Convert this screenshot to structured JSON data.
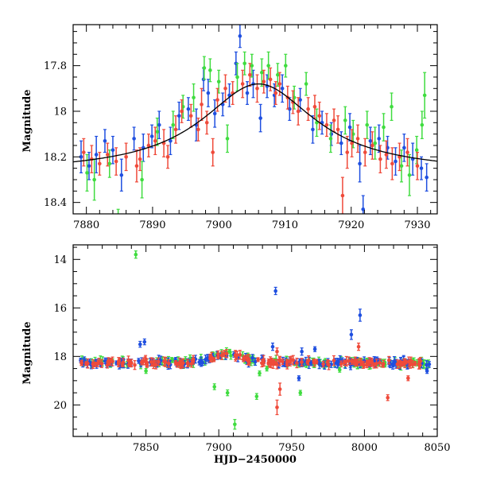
{
  "chart_data": [
    {
      "type": "scatter",
      "id": "top",
      "title": "",
      "xlabel": "",
      "ylabel": "Magnitude",
      "xlim": [
        7878,
        7933
      ],
      "ylim": [
        18.45,
        17.62
      ],
      "y_inverted": true,
      "xticks": [
        7880,
        7890,
        7900,
        7910,
        7920,
        7930
      ],
      "yticks": [
        17.8,
        18,
        18.2,
        18.4
      ],
      "ytick_labels": [
        "17.8",
        "18",
        "18.2",
        "18.4"
      ],
      "colors": {
        "blue": "#1f4fe0",
        "green": "#3fdc3f",
        "red": "#ef4a3a",
        "model": "#000000"
      },
      "model_curve": {
        "peak_x": 7906,
        "peak_mag": 17.88,
        "baseline_mag": 18.27,
        "width": 10.5
      },
      "series": [
        {
          "color": "blue",
          "points": [
            [
              7879.2,
              18.2,
              0.07
            ],
            [
              7880.4,
              18.24,
              0.06
            ],
            [
              7881.5,
              18.19,
              0.08
            ],
            [
              7882.8,
              18.13,
              0.05
            ],
            [
              7884.0,
              18.17,
              0.06
            ],
            [
              7885.3,
              18.28,
              0.07
            ],
            [
              7887.2,
              18.12,
              0.05
            ],
            [
              7888.6,
              18.16,
              0.06
            ],
            [
              7889.9,
              18.11,
              0.05
            ],
            [
              7891.0,
              18.06,
              0.06
            ],
            [
              7892.7,
              18.13,
              0.06
            ],
            [
              7894.0,
              18.02,
              0.06
            ],
            [
              7895.4,
              17.99,
              0.05
            ],
            [
              7896.6,
              18.06,
              0.07
            ],
            [
              7897.7,
              17.86,
              0.05
            ],
            [
              7898.4,
              17.92,
              0.06
            ],
            [
              7899.4,
              18.01,
              0.06
            ],
            [
              7900.6,
              17.97,
              0.05
            ],
            [
              7901.6,
              17.93,
              0.05
            ],
            [
              7902.6,
              17.79,
              0.05
            ],
            [
              7903.2,
              17.67,
              0.05
            ],
            [
              7904.3,
              17.92,
              0.05
            ],
            [
              7905.2,
              17.88,
              0.06
            ],
            [
              7906.3,
              18.03,
              0.06
            ],
            [
              7907.3,
              17.89,
              0.05
            ],
            [
              7908.4,
              17.93,
              0.05
            ],
            [
              7909.6,
              17.9,
              0.06
            ],
            [
              7910.7,
              17.99,
              0.05
            ],
            [
              7912.3,
              17.95,
              0.05
            ],
            [
              7914.2,
              18.08,
              0.06
            ],
            [
              7915.6,
              18.05,
              0.05
            ],
            [
              7917.0,
              18.1,
              0.05
            ],
            [
              7918.5,
              18.14,
              0.05
            ],
            [
              7919.8,
              18.07,
              0.06
            ],
            [
              7921.3,
              18.23,
              0.08
            ],
            [
              7921.8,
              18.43,
              0.06
            ],
            [
              7922.9,
              18.13,
              0.06
            ],
            [
              7924.2,
              18.12,
              0.06
            ],
            [
              7925.5,
              18.16,
              0.05
            ],
            [
              7926.7,
              18.22,
              0.06
            ],
            [
              7928.0,
              18.16,
              0.06
            ],
            [
              7929.3,
              18.21,
              0.07
            ],
            [
              7930.6,
              18.25,
              0.05
            ],
            [
              7931.4,
              18.29,
              0.06
            ]
          ]
        },
        {
          "color": "green",
          "points": [
            [
              7880.1,
              18.27,
              0.08
            ],
            [
              7881.2,
              18.3,
              0.09
            ],
            [
              7883.5,
              18.23,
              0.06
            ],
            [
              7884.8,
              18.48,
              0.05
            ],
            [
              7888.4,
              18.3,
              0.08
            ],
            [
              7890.7,
              18.09,
              0.06
            ],
            [
              7893.1,
              18.06,
              0.06
            ],
            [
              7894.6,
              17.98,
              0.05
            ],
            [
              7896.2,
              17.94,
              0.06
            ],
            [
              7897.8,
              17.81,
              0.05
            ],
            [
              7898.7,
              17.82,
              0.05
            ],
            [
              7900.0,
              17.87,
              0.05
            ],
            [
              7901.3,
              18.12,
              0.06
            ],
            [
              7902.8,
              17.85,
              0.06
            ],
            [
              7903.9,
              17.79,
              0.05
            ],
            [
              7905.0,
              17.8,
              0.05
            ],
            [
              7906.5,
              17.83,
              0.06
            ],
            [
              7907.5,
              17.8,
              0.06
            ],
            [
              7908.9,
              17.84,
              0.05
            ],
            [
              7910.1,
              17.8,
              0.05
            ],
            [
              7911.4,
              17.94,
              0.05
            ],
            [
              7913.2,
              17.88,
              0.05
            ],
            [
              7914.8,
              18.05,
              0.06
            ],
            [
              7916.9,
              18.12,
              0.06
            ],
            [
              7919.1,
              18.04,
              0.06
            ],
            [
              7920.3,
              18.1,
              0.06
            ],
            [
              7922.4,
              18.06,
              0.06
            ],
            [
              7923.6,
              18.14,
              0.07
            ],
            [
              7924.9,
              18.07,
              0.06
            ],
            [
              7926.1,
              17.98,
              0.06
            ],
            [
              7927.6,
              18.24,
              0.07
            ],
            [
              7928.8,
              18.28,
              0.09
            ],
            [
              7929.9,
              18.17,
              0.06
            ],
            [
              7930.7,
              18.06,
              0.06
            ],
            [
              7931.1,
              17.93,
              0.1
            ]
          ]
        },
        {
          "color": "red",
          "points": [
            [
              7879.6,
              18.18,
              0.06
            ],
            [
              7880.8,
              18.21,
              0.06
            ],
            [
              7882.0,
              18.23,
              0.05
            ],
            [
              7883.2,
              18.19,
              0.05
            ],
            [
              7884.5,
              18.22,
              0.06
            ],
            [
              7886.0,
              18.2,
              0.06
            ],
            [
              7887.6,
              18.24,
              0.07
            ],
            [
              7888.1,
              18.21,
              0.05
            ],
            [
              7889.4,
              18.15,
              0.05
            ],
            [
              7890.4,
              18.13,
              0.06
            ],
            [
              7891.7,
              18.14,
              0.06
            ],
            [
              7892.3,
              18.2,
              0.05
            ],
            [
              7893.5,
              18.08,
              0.06
            ],
            [
              7894.4,
              18.0,
              0.05
            ],
            [
              7895.8,
              18.02,
              0.05
            ],
            [
              7896.9,
              18.08,
              0.05
            ],
            [
              7897.4,
              17.97,
              0.07
            ],
            [
              7898.2,
              18.05,
              0.05
            ],
            [
              7899.1,
              18.18,
              0.06
            ],
            [
              7899.8,
              17.95,
              0.05
            ],
            [
              7901.0,
              17.9,
              0.06
            ],
            [
              7902.1,
              17.92,
              0.05
            ],
            [
              7903.6,
              17.88,
              0.06
            ],
            [
              7904.7,
              17.84,
              0.05
            ],
            [
              7905.8,
              17.9,
              0.06
            ],
            [
              7906.8,
              17.87,
              0.05
            ],
            [
              7907.8,
              17.86,
              0.05
            ],
            [
              7908.6,
              17.92,
              0.05
            ],
            [
              7909.2,
              17.88,
              0.05
            ],
            [
              7910.4,
              17.94,
              0.05
            ],
            [
              7911.2,
              17.96,
              0.05
            ],
            [
              7912.0,
              18.0,
              0.06
            ],
            [
              7913.5,
              17.99,
              0.05
            ],
            [
              7914.5,
              17.98,
              0.05
            ],
            [
              7915.2,
              18.02,
              0.06
            ],
            [
              7916.3,
              18.06,
              0.05
            ],
            [
              7917.4,
              18.04,
              0.05
            ],
            [
              7918.0,
              18.08,
              0.06
            ],
            [
              7918.7,
              18.37,
              0.08
            ],
            [
              7919.4,
              18.18,
              0.07
            ],
            [
              7920.1,
              18.14,
              0.06
            ],
            [
              7921.0,
              18.12,
              0.06
            ],
            [
              7922.1,
              18.18,
              0.06
            ],
            [
              7923.2,
              18.15,
              0.06
            ],
            [
              7924.4,
              18.21,
              0.06
            ],
            [
              7925.3,
              18.19,
              0.06
            ],
            [
              7926.2,
              18.23,
              0.07
            ],
            [
              7927.3,
              18.2,
              0.06
            ],
            [
              7928.5,
              18.18,
              0.06
            ],
            [
              7930.0,
              18.24,
              0.06
            ]
          ]
        }
      ]
    },
    {
      "type": "scatter",
      "id": "bottom",
      "title": "",
      "xlabel": "HJD−2450000",
      "ylabel": "Magnitude",
      "xlim": [
        7800,
        8050
      ],
      "ylim": [
        21.3,
        13.4
      ],
      "y_inverted": true,
      "xticks": [
        7850,
        7900,
        7950,
        8000,
        8050
      ],
      "yticks": [
        14,
        16,
        18,
        20
      ],
      "ytick_labels": [
        "14",
        "16",
        "18",
        "20"
      ],
      "colors": {
        "blue": "#1f4fe0",
        "green": "#3fdc3f",
        "red": "#ef4a3a"
      },
      "outliers": [
        {
          "color": "green",
          "x": 7843,
          "y": 13.8,
          "e": 0.15
        },
        {
          "color": "blue",
          "x": 7939,
          "y": 15.3,
          "e": 0.15
        },
        {
          "color": "blue",
          "x": 7997,
          "y": 16.3,
          "e": 0.25
        },
        {
          "color": "blue",
          "x": 7991,
          "y": 17.1,
          "e": 0.2
        },
        {
          "color": "blue",
          "x": 7846,
          "y": 17.5,
          "e": 0.12
        },
        {
          "color": "blue",
          "x": 7849,
          "y": 17.4,
          "e": 0.12
        },
        {
          "color": "blue",
          "x": 7937,
          "y": 17.6,
          "e": 0.15
        },
        {
          "color": "red",
          "x": 7940,
          "y": 17.8,
          "e": 0.15
        },
        {
          "color": "blue",
          "x": 7957,
          "y": 17.8,
          "e": 0.15
        },
        {
          "color": "blue",
          "x": 7966,
          "y": 17.7,
          "e": 0.1
        },
        {
          "color": "red",
          "x": 7996,
          "y": 17.6,
          "e": 0.15
        },
        {
          "color": "green",
          "x": 7897,
          "y": 19.25,
          "e": 0.12
        },
        {
          "color": "green",
          "x": 7906,
          "y": 19.5,
          "e": 0.12
        },
        {
          "color": "green",
          "x": 7926,
          "y": 19.65,
          "e": 0.12
        },
        {
          "color": "green",
          "x": 7956,
          "y": 19.5,
          "e": 0.1
        },
        {
          "color": "green",
          "x": 7911,
          "y": 20.8,
          "e": 0.2
        },
        {
          "color": "red",
          "x": 7942,
          "y": 19.35,
          "e": 0.25
        },
        {
          "color": "red",
          "x": 7940,
          "y": 20.1,
          "e": 0.3
        },
        {
          "color": "red",
          "x": 8016,
          "y": 19.7,
          "e": 0.12
        },
        {
          "color": "green",
          "x": 7928,
          "y": 18.7,
          "e": 0.1
        },
        {
          "color": "green",
          "x": 7933,
          "y": 18.5,
          "e": 0.1
        },
        {
          "color": "green",
          "x": 7850,
          "y": 18.6,
          "e": 0.1
        },
        {
          "color": "green",
          "x": 7983,
          "y": 18.55,
          "e": 0.1
        },
        {
          "color": "blue",
          "x": 7955,
          "y": 18.9,
          "e": 0.1
        },
        {
          "color": "red",
          "x": 8030,
          "y": 18.9,
          "e": 0.1
        },
        {
          "color": "blue",
          "x": 8043,
          "y": 18.6,
          "e": 0.1
        }
      ],
      "baseline_model": {
        "peak_x": 7906,
        "peak_mag": 17.88,
        "baseline_mag": 18.27,
        "width": 10.5
      }
    }
  ]
}
